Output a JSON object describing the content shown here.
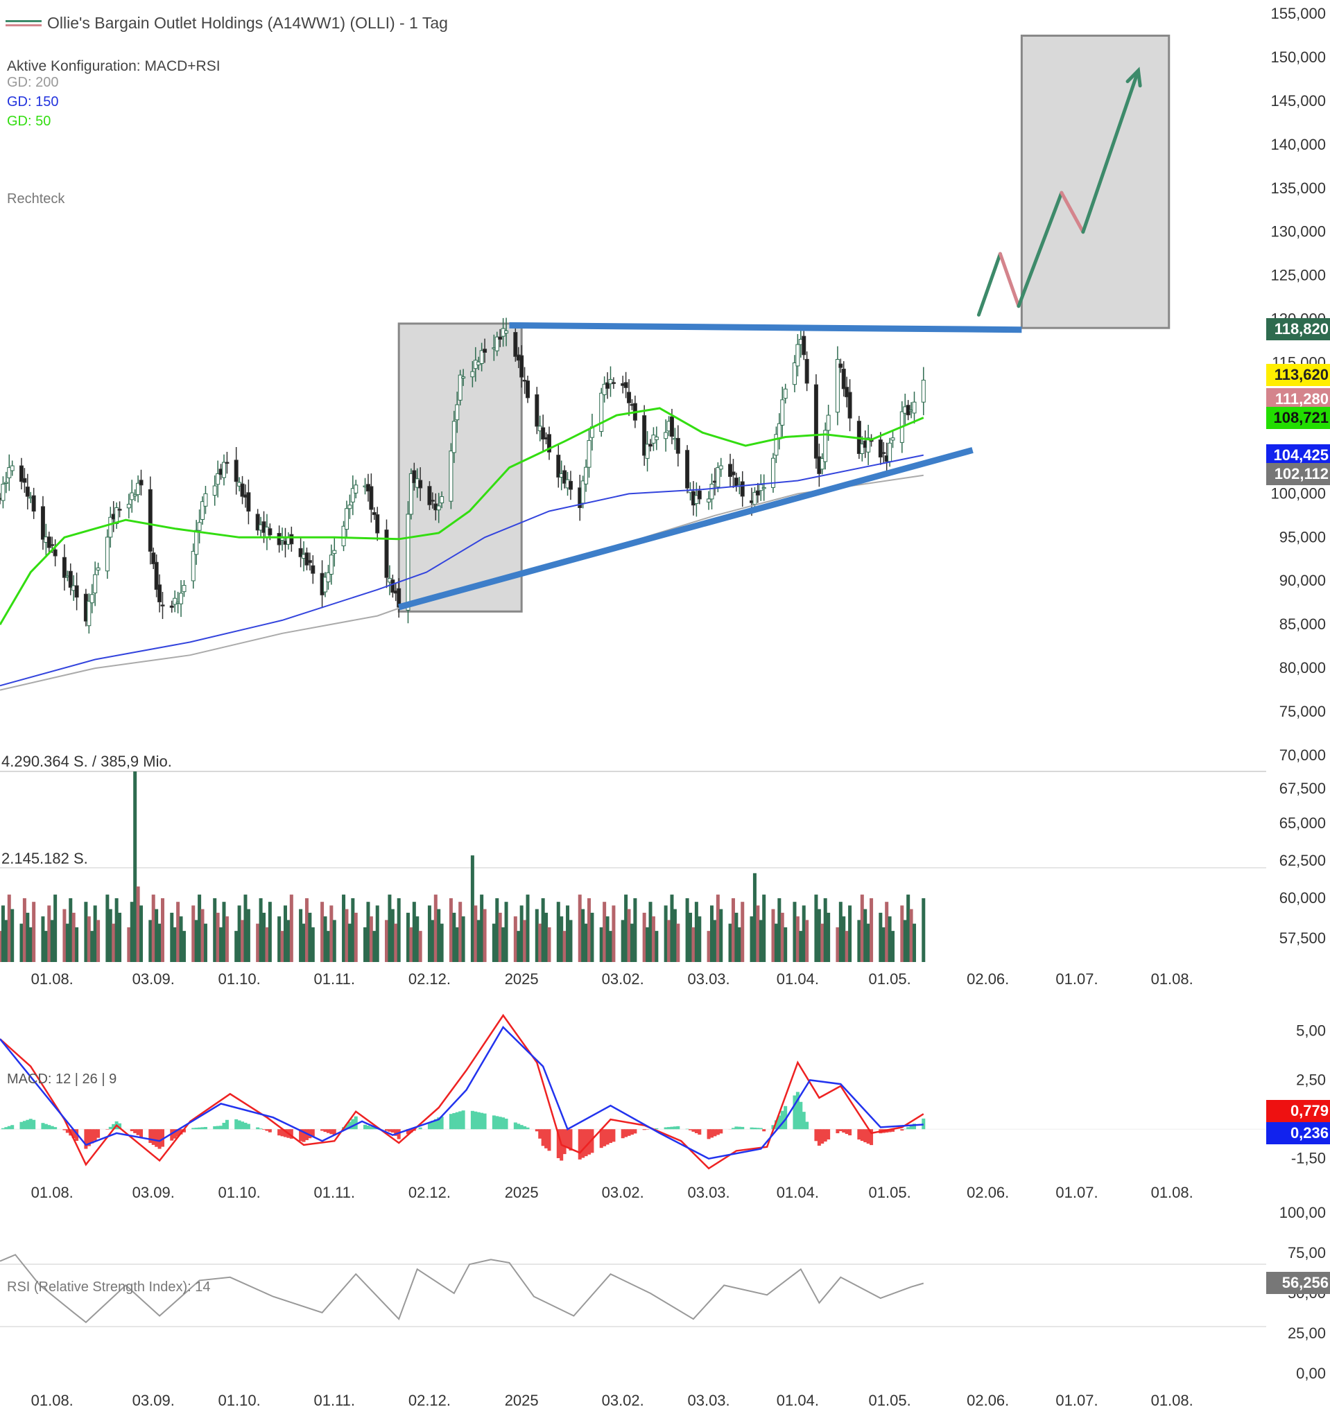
{
  "header": {
    "instrument_title": "Ollie's Bargain Outlet Holdings (A14WW1) (OLLI) - 1 Tag",
    "config_label": "Aktive Konfiguration: MACD+RSI",
    "ma_labels": [
      {
        "text": "GD: 200",
        "color": "#999999"
      },
      {
        "text": "GD: 150",
        "color": "#2233dd"
      },
      {
        "text": "GD: 50",
        "color": "#33dd11"
      }
    ],
    "drawing_label": "Rechteck"
  },
  "colors": {
    "up": "#2e6b4f",
    "down": "#b5646a",
    "ma50": "#33dd11",
    "ma150": "#3344dd",
    "ma200": "#aaaaaa",
    "trendline": "#3d7ec9",
    "macd": "#ee2222",
    "signal": "#2233ee",
    "hist_pos": "#55d4a8",
    "hist_neg": "#ee4444",
    "rsi": "#999999",
    "arrow_up": "#3d8a6a",
    "arrow_down": "#d4848c"
  },
  "price_panel": {
    "y_ticks": [
      "155,000",
      "150,000",
      "145,000",
      "140,000",
      "135,000",
      "130,000",
      "125,000",
      "120,000",
      "115,000",
      "110,000",
      "105,000",
      "100,000",
      "95,000",
      "90,000",
      "85,000",
      "80,000",
      "75,000",
      "70,000",
      "67,500",
      "65,000",
      "62,500",
      "60,000",
      "57,500"
    ],
    "price_labels": [
      {
        "text": "118,820",
        "bg": "#2e6b4f",
        "fg": "#ffffff"
      },
      {
        "text": "113,620",
        "bg": "#ffee00",
        "fg": "#222222"
      },
      {
        "text": "111,280",
        "bg": "#d4848c",
        "fg": "#ffffff"
      },
      {
        "text": "108,721",
        "bg": "#22dd00",
        "fg": "#111111"
      },
      {
        "text": "104,425",
        "bg": "#1122ee",
        "fg": "#ffffff"
      },
      {
        "text": "102,112",
        "bg": "#777777",
        "fg": "#ffffff"
      }
    ]
  },
  "volume_panel": {
    "max_label": "4.290.364 S. / 385,9 Mio.",
    "mid_label": "2.145.182 S."
  },
  "macd_panel": {
    "label": "MACD: 12 | 26 | 9",
    "y_ticks": [
      "5,00",
      "2,50",
      "-1,50"
    ],
    "value_labels": [
      {
        "text": "0,779",
        "bg": "#ee1111",
        "fg": "#ffffff"
      },
      {
        "text": "0,236",
        "bg": "#1122ee",
        "fg": "#ffffff"
      }
    ]
  },
  "rsi_panel": {
    "label": "RSI (Relative Strength Index): 14",
    "y_ticks": [
      "100,00",
      "75,00",
      "50,00",
      "25,00",
      "0,00"
    ],
    "value_label": {
      "text": "56,256",
      "bg": "#777777",
      "fg": "#ffffff"
    }
  },
  "x_ticks": [
    "01.08.",
    "03.09.",
    "01.10.",
    "01.11.",
    "02.12.",
    "2025",
    "03.02.",
    "03.03.",
    "01.04.",
    "01.05.",
    "02.06.",
    "01.07.",
    "01.08."
  ],
  "chart_data": {
    "type": "candlestick",
    "title": "Ollie's Bargain Outlet Holdings (A14WW1) (OLLI) - 1 Tag",
    "x_range": [
      "2024-07-15",
      "2025-08-10"
    ],
    "y_range": [
      70,
      155
    ],
    "anchors": [
      [
        "2024-07-15",
        100
      ],
      [
        "2024-07-20",
        104
      ],
      [
        "2024-07-28",
        96
      ],
      [
        "2024-08-05",
        91
      ],
      [
        "2024-08-12",
        86
      ],
      [
        "2024-08-20",
        97
      ],
      [
        "2024-08-30",
        101
      ],
      [
        "2024-09-05",
        87
      ],
      [
        "2024-09-12",
        88
      ],
      [
        "2024-09-20",
        100
      ],
      [
        "2024-09-28",
        104
      ],
      [
        "2024-10-05",
        97
      ],
      [
        "2024-10-12",
        95
      ],
      [
        "2024-10-20",
        94
      ],
      [
        "2024-10-28",
        89
      ],
      [
        "2024-11-05",
        98
      ],
      [
        "2024-11-10",
        103
      ],
      [
        "2024-11-18",
        91
      ],
      [
        "2024-11-22",
        87
      ],
      [
        "2024-11-26",
        102
      ],
      [
        "2024-12-05",
        98
      ],
      [
        "2024-12-08",
        103
      ],
      [
        "2024-12-12",
        113
      ],
      [
        "2024-12-22",
        117
      ],
      [
        "2024-12-28",
        119
      ],
      [
        "2025-01-03",
        111
      ],
      [
        "2025-01-12",
        103
      ],
      [
        "2025-01-20",
        99
      ],
      [
        "2025-01-26",
        112
      ],
      [
        "2025-02-03",
        113
      ],
      [
        "2025-02-10",
        105
      ],
      [
        "2025-02-18",
        108
      ],
      [
        "2025-02-26",
        99
      ],
      [
        "2025-03-03",
        100
      ],
      [
        "2025-03-08",
        104
      ],
      [
        "2025-03-15",
        99
      ],
      [
        "2025-03-22",
        101
      ],
      [
        "2025-03-28",
        112
      ],
      [
        "2025-04-02",
        118
      ],
      [
        "2025-04-08",
        102
      ],
      [
        "2025-04-14",
        116
      ],
      [
        "2025-04-20",
        105
      ],
      [
        "2025-04-25",
        106
      ],
      [
        "2025-04-30",
        104
      ],
      [
        "2025-05-05",
        110
      ],
      [
        "2025-05-08",
        109
      ],
      [
        "2025-05-10",
        112
      ],
      [
        "2025-05-12",
        113.62
      ]
    ],
    "ma_series": {
      "ma50": [
        [
          "2024-07-15",
          85
        ],
        [
          "2024-07-25",
          91
        ],
        [
          "2024-08-05",
          95
        ],
        [
          "2024-08-15",
          96
        ],
        [
          "2024-08-25",
          97
        ],
        [
          "2024-09-10",
          96
        ],
        [
          "2024-10-01",
          95
        ],
        [
          "2024-11-01",
          95
        ],
        [
          "2024-11-22",
          94.8
        ],
        [
          "2024-12-05",
          95.5
        ],
        [
          "2024-12-15",
          98
        ],
        [
          "2024-12-28",
          103
        ],
        [
          "2025-01-15",
          106
        ],
        [
          "2025-02-01",
          109
        ],
        [
          "2025-02-15",
          109.8
        ],
        [
          "2025-03-01",
          107
        ],
        [
          "2025-03-15",
          105.5
        ],
        [
          "2025-03-28",
          106.5
        ],
        [
          "2025-04-10",
          106.8
        ],
        [
          "2025-04-25",
          106.2
        ],
        [
          "2025-05-12",
          108.72
        ]
      ],
      "ma150": [
        [
          "2024-07-15",
          78
        ],
        [
          "2024-08-15",
          81
        ],
        [
          "2024-09-15",
          83
        ],
        [
          "2024-10-15",
          85.5
        ],
        [
          "2024-11-15",
          89
        ],
        [
          "2024-12-01",
          91
        ],
        [
          "2024-12-20",
          95
        ],
        [
          "2025-01-10",
          98
        ],
        [
          "2025-02-05",
          100
        ],
        [
          "2025-03-01",
          100.5
        ],
        [
          "2025-04-01",
          101.5
        ],
        [
          "2025-05-12",
          104.43
        ]
      ],
      "ma200": [
        [
          "2024-07-15",
          77.5
        ],
        [
          "2024-08-15",
          80
        ],
        [
          "2024-09-15",
          81.5
        ],
        [
          "2024-10-15",
          84
        ],
        [
          "2024-11-15",
          86
        ],
        [
          "2024-12-01",
          88
        ],
        [
          "2025-01-05",
          91
        ],
        [
          "2025-02-10",
          95
        ],
        [
          "2025-03-05",
          97.5
        ],
        [
          "2025-04-01",
          100
        ],
        [
          "2025-05-12",
          102.11
        ]
      ]
    },
    "trendlines": [
      {
        "from": [
          "2024-12-28",
          119.3
        ],
        "to": [
          "2025-06-13",
          118.8
        ],
        "role": "resistance"
      },
      {
        "from": [
          "2024-11-22",
          87
        ],
        "to": [
          "2025-05-28",
          105
        ],
        "role": "support"
      }
    ],
    "rectangles": [
      {
        "from": [
          "2024-11-22",
          86.5
        ],
        "to": [
          "2025-01-01",
          119.5
        ]
      },
      {
        "from": [
          "2025-06-13",
          119
        ],
        "to": [
          "2025-07-31",
          152.5
        ]
      }
    ],
    "projection_path": [
      [
        "2025-05-30",
        120.5
      ],
      [
        "2025-06-06",
        127.5
      ],
      [
        "2025-06-12",
        121.5
      ],
      [
        "2025-06-26",
        134.5
      ],
      [
        "2025-07-03",
        130
      ],
      [
        "2025-07-21",
        148.5
      ]
    ],
    "last_values": {
      "close": 113.62,
      "ma50": 108.721,
      "ma150": 104.425,
      "ma200": 102.112,
      "resistance": 118.82,
      "prev": 111.28
    },
    "volume": {
      "max": 4290364,
      "max_turnover_label": "385,9 Mio.",
      "spikes": [
        [
          "2024-08-28",
          4.29
        ],
        [
          "2024-12-16",
          2.4
        ],
        [
          "2025-03-18",
          2.0
        ],
        [
          "2024-08-29",
          1.7
        ]
      ]
    },
    "macd": {
      "fast": 12,
      "slow": 26,
      "signal": 9,
      "y_range": [
        -2.5,
        5.8
      ],
      "macd_anchors": [
        [
          "2024-07-15",
          4.6
        ],
        [
          "2024-07-25",
          3.2
        ],
        [
          "2024-08-05",
          0.5
        ],
        [
          "2024-08-12",
          -1.8
        ],
        [
          "2024-08-22",
          0.2
        ],
        [
          "2024-09-05",
          -1.6
        ],
        [
          "2024-09-15",
          0.4
        ],
        [
          "2024-09-28",
          1.8
        ],
        [
          "2024-10-10",
          0.6
        ],
        [
          "2024-10-22",
          -0.8
        ],
        [
          "2024-11-01",
          -0.6
        ],
        [
          "2024-11-08",
          0.9
        ],
        [
          "2024-11-22",
          -0.7
        ],
        [
          "2024-12-05",
          1.1
        ],
        [
          "2024-12-14",
          3.0
        ],
        [
          "2024-12-26",
          5.8
        ],
        [
          "2025-01-06",
          3.4
        ],
        [
          "2025-01-14",
          -0.8
        ],
        [
          "2025-01-20",
          -1.2
        ],
        [
          "2025-01-30",
          0.5
        ],
        [
          "2025-02-10",
          0.2
        ],
        [
          "2025-02-22",
          -0.6
        ],
        [
          "2025-03-03",
          -2.0
        ],
        [
          "2025-03-12",
          -1.1
        ],
        [
          "2025-03-22",
          -0.9
        ],
        [
          "2025-04-01",
          3.4
        ],
        [
          "2025-04-08",
          1.6
        ],
        [
          "2025-04-15",
          2.2
        ],
        [
          "2025-04-25",
          -0.2
        ],
        [
          "2025-05-05",
          0.1
        ],
        [
          "2025-05-12",
          0.779
        ]
      ],
      "signal_anchors": [
        [
          "2024-07-15",
          4.6
        ],
        [
          "2024-08-12",
          -0.8
        ],
        [
          "2024-08-22",
          -0.2
        ],
        [
          "2024-09-05",
          -0.6
        ],
        [
          "2024-09-25",
          1.3
        ],
        [
          "2024-10-12",
          0.6
        ],
        [
          "2024-10-28",
          -0.6
        ],
        [
          "2024-11-10",
          0.4
        ],
        [
          "2024-11-20",
          -0.3
        ],
        [
          "2024-12-05",
          0.5
        ],
        [
          "2024-12-14",
          2.0
        ],
        [
          "2024-12-26",
          5.2
        ],
        [
          "2025-01-08",
          3.2
        ],
        [
          "2025-01-16",
          0.0
        ],
        [
          "2025-01-30",
          1.2
        ],
        [
          "2025-02-15",
          -0.2
        ],
        [
          "2025-03-03",
          -1.5
        ],
        [
          "2025-03-20",
          -1.0
        ],
        [
          "2025-03-28",
          0.5
        ],
        [
          "2025-04-05",
          2.5
        ],
        [
          "2025-04-15",
          2.3
        ],
        [
          "2025-04-28",
          0.1
        ],
        [
          "2025-05-12",
          0.236
        ]
      ]
    },
    "rsi": {
      "period": 14,
      "y_range": [
        0,
        100
      ],
      "last": 56.256,
      "anchors": [
        [
          "2024-07-15",
          70
        ],
        [
          "2024-07-20",
          74
        ],
        [
          "2024-07-28",
          55
        ],
        [
          "2024-08-08",
          38
        ],
        [
          "2024-08-12",
          32
        ],
        [
          "2024-08-25",
          55
        ],
        [
          "2024-09-05",
          36
        ],
        [
          "2024-09-18",
          58
        ],
        [
          "2024-09-28",
          60
        ],
        [
          "2024-10-12",
          48
        ],
        [
          "2024-10-28",
          38
        ],
        [
          "2024-11-08",
          62
        ],
        [
          "2024-11-22",
          34
        ],
        [
          "2024-11-28",
          65
        ],
        [
          "2024-12-10",
          50
        ],
        [
          "2024-12-15",
          68
        ],
        [
          "2024-12-22",
          71
        ],
        [
          "2024-12-28",
          69
        ],
        [
          "2025-01-05",
          48
        ],
        [
          "2025-01-18",
          36
        ],
        [
          "2025-01-30",
          62
        ],
        [
          "2025-02-12",
          50
        ],
        [
          "2025-02-26",
          34
        ],
        [
          "2025-03-08",
          55
        ],
        [
          "2025-03-22",
          49
        ],
        [
          "2025-04-02",
          65
        ],
        [
          "2025-04-08",
          44
        ],
        [
          "2025-04-15",
          60
        ],
        [
          "2025-04-28",
          47
        ],
        [
          "2025-05-08",
          54
        ],
        [
          "2025-05-12",
          56.26
        ]
      ]
    }
  }
}
